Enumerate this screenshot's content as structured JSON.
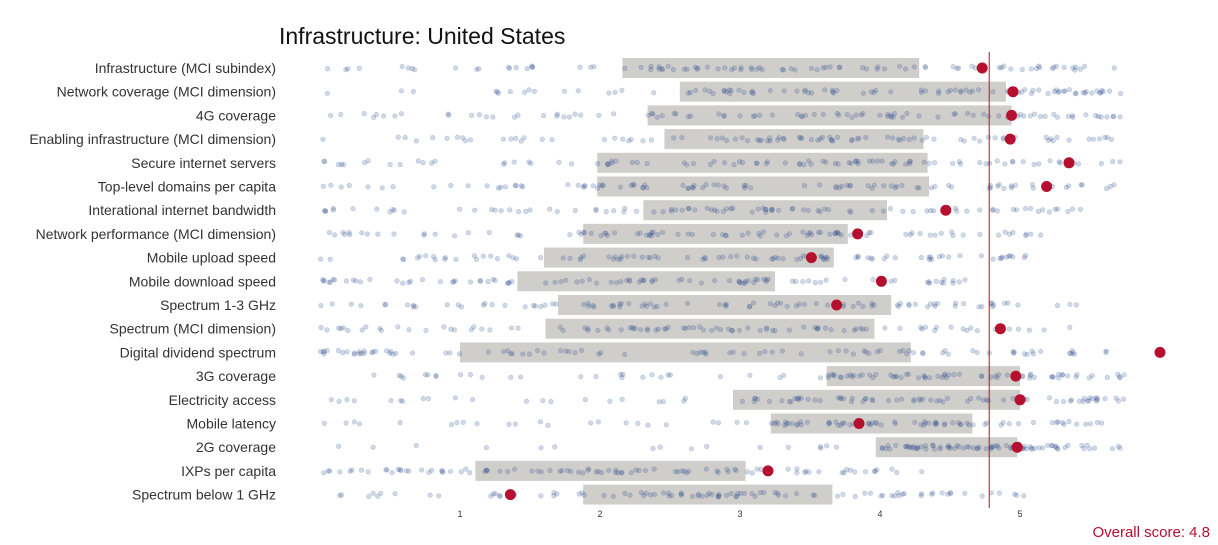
{
  "chart_data": {
    "type": "scatter",
    "title": "Infrastructure: United States",
    "xlabel": "",
    "ylabel": "",
    "xlim": [
      0.0,
      6.05
    ],
    "x_ticks": [
      1,
      2,
      3,
      4,
      5
    ],
    "grid": false,
    "overall_score_label": "Overall score: 4.8",
    "overall_score": 4.78,
    "colors": {
      "box": "#d0cecb",
      "points": "#2f4f8f",
      "highlight": "#b5102f",
      "reference_line": "#b5102f"
    },
    "rows": [
      {
        "label": "Infrastructure (MCI subindex)",
        "iqr": [
          2.16,
          4.28
        ],
        "value": 4.73
      },
      {
        "label": "Network coverage (MCI dimension)",
        "iqr": [
          2.57,
          4.9
        ],
        "value": 4.95
      },
      {
        "label": "4G coverage",
        "iqr": [
          2.34,
          4.94
        ],
        "value": 4.94
      },
      {
        "label": "Enabling infrastructure (MCI dimension)",
        "iqr": [
          2.46,
          4.31
        ],
        "value": 4.93
      },
      {
        "label": "Secure internet servers",
        "iqr": [
          1.98,
          4.34
        ],
        "value": 5.35
      },
      {
        "label": "Top-level domains per capita",
        "iqr": [
          1.98,
          4.35
        ],
        "value": 5.19
      },
      {
        "label": "Interational internet bandwidth",
        "iqr": [
          2.31,
          4.05
        ],
        "value": 4.47
      },
      {
        "label": "Network performance (MCI dimension)",
        "iqr": [
          1.88,
          3.77
        ],
        "value": 3.84
      },
      {
        "label": "Mobile upload speed",
        "iqr": [
          1.6,
          3.67
        ],
        "value": 3.51
      },
      {
        "label": "Mobile download speed",
        "iqr": [
          1.41,
          3.25
        ],
        "value": 4.01
      },
      {
        "label": "Spectrum 1-3 GHz",
        "iqr": [
          1.7,
          4.08
        ],
        "value": 3.69
      },
      {
        "label": "Spectrum (MCI dimension)",
        "iqr": [
          1.61,
          3.96
        ],
        "value": 4.86
      },
      {
        "label": "Digital dividend spectrum",
        "iqr": [
          1.0,
          4.22
        ],
        "value": 6.0
      },
      {
        "label": "3G coverage",
        "iqr": [
          3.62,
          5.0
        ],
        "value": 4.97
      },
      {
        "label": "Electricity access",
        "iqr": [
          2.95,
          5.0
        ],
        "value": 5.0
      },
      {
        "label": "Mobile latency",
        "iqr": [
          3.22,
          4.66
        ],
        "value": 3.85
      },
      {
        "label": "2G coverage",
        "iqr": [
          3.97,
          4.98
        ],
        "value": 4.98
      },
      {
        "label": "IXPs per capita",
        "iqr": [
          1.11,
          3.04
        ],
        "value": 3.2
      },
      {
        "label": "Spectrum below 1 GHz",
        "iqr": [
          1.88,
          3.66
        ],
        "value": 1.36
      }
    ],
    "n_countries_per_row": 95
  }
}
